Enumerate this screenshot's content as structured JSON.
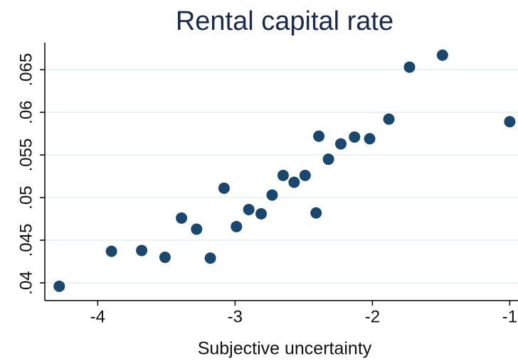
{
  "chart_data": {
    "type": "scatter",
    "title": "Rental capital rate",
    "x_label": "Subjective uncertainty",
    "color": "#1a476f",
    "grid": true,
    "xlim": [
      -4.385,
      -0.94
    ],
    "xticks": [
      -4,
      -3,
      -2,
      -1
    ],
    "ylim": [
      0.03792,
      0.06817
    ],
    "yticks": [
      {
        "value": 0.04,
        "label": ".04"
      },
      {
        "value": 0.045,
        "label": ".045"
      },
      {
        "value": 0.05,
        "label": ".05"
      },
      {
        "value": 0.055,
        "label": ".055"
      },
      {
        "value": 0.06,
        "label": ".06"
      },
      {
        "value": 0.065,
        "label": ".065"
      }
    ],
    "x": [
      -4.28,
      -3.9,
      -3.68,
      -3.51,
      -3.39,
      -3.28,
      -3.18,
      -3.08,
      -2.99,
      -2.9,
      -2.81,
      -2.73,
      -2.65,
      -2.57,
      -2.49,
      -2.41,
      -2.39,
      -2.32,
      -2.23,
      -2.13,
      -2.02,
      -1.88,
      -1.73,
      -1.49,
      -1.0
    ],
    "values": [
      0.0396,
      0.0437,
      0.0438,
      0.043,
      0.0476,
      0.0463,
      0.0429,
      0.0511,
      0.0466,
      0.0486,
      0.0481,
      0.0503,
      0.0526,
      0.0518,
      0.0526,
      0.0482,
      0.0572,
      0.0545,
      0.0563,
      0.0571,
      0.0569,
      0.0592,
      0.0653,
      0.0667,
      0.0589
    ]
  }
}
